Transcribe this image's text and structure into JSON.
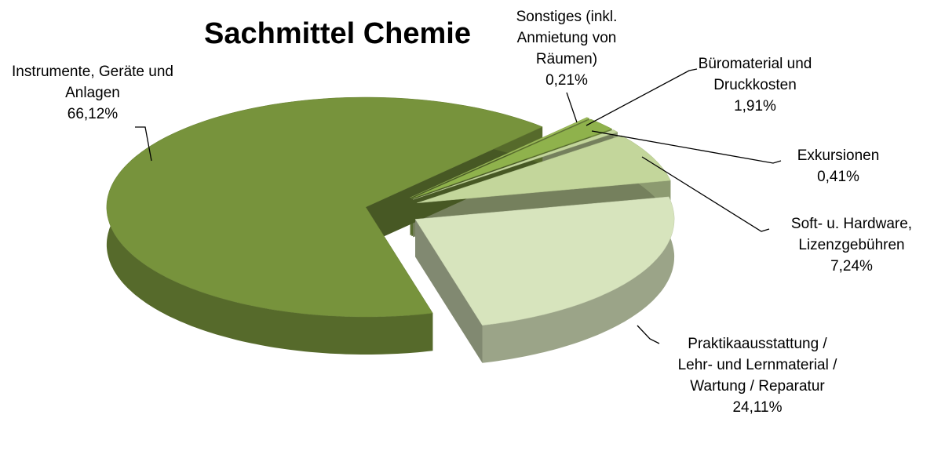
{
  "chart_data": {
    "type": "pie3d",
    "title": "Sachmittel Chemie",
    "categories": [
      "Instrumente, Geräte und Anlagen",
      "Sonstiges (inkl. Anmietung von Räumen)",
      "Büromaterial und Druckkosten",
      "Exkursionen",
      "Soft- u. Hardware, Lizenzgebühren",
      "Praktikaausstattung / Lehr- und Lernmaterial / Wartung / Reparatur"
    ],
    "values": [
      66.12,
      0.21,
      1.91,
      0.41,
      7.24,
      24.11
    ],
    "value_labels": [
      "66,12%",
      "0,21%",
      "1,91%",
      "0,41%",
      "7,24%",
      "24,11%"
    ],
    "colors": [
      "#77933c",
      "#9bbb59",
      "#8fb24c",
      "#c3d69b",
      "#c3d69b",
      "#d7e4bd"
    ]
  }
}
